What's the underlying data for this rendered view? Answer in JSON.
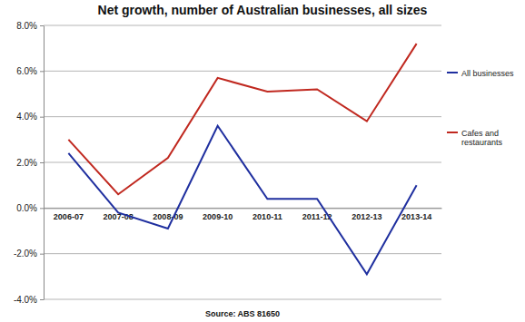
{
  "chart_data": {
    "type": "line",
    "title": "Net growth, number of Australian businesses, all sizes",
    "source": "Source: ABS 81650",
    "categories": [
      "2006-07",
      "2007-08",
      "2008-09",
      "2009-10",
      "2010-11",
      "2011-12",
      "2012-13",
      "2013-14"
    ],
    "series": [
      {
        "name": "All businesses",
        "color": "#1f2f9f",
        "values": [
          2.4,
          -0.2,
          -0.9,
          3.6,
          0.4,
          0.4,
          -2.9,
          1.0
        ]
      },
      {
        "name": "Cafes and restaurants",
        "color": "#c0281f",
        "values": [
          3.0,
          0.6,
          2.2,
          5.7,
          5.1,
          5.2,
          3.8,
          7.2
        ]
      }
    ],
    "ylim": [
      -4,
      8
    ],
    "yticks": [
      {
        "value": -4,
        "label": "-4.0%"
      },
      {
        "value": -2,
        "label": "-2.0%"
      },
      {
        "value": 0,
        "label": "0.0%"
      },
      {
        "value": 2,
        "label": "2.0%"
      },
      {
        "value": 4,
        "label": "4.0%"
      },
      {
        "value": 6,
        "label": "6.0%"
      },
      {
        "value": 8,
        "label": "8.0%"
      }
    ],
    "grid": true,
    "legend": "right"
  }
}
